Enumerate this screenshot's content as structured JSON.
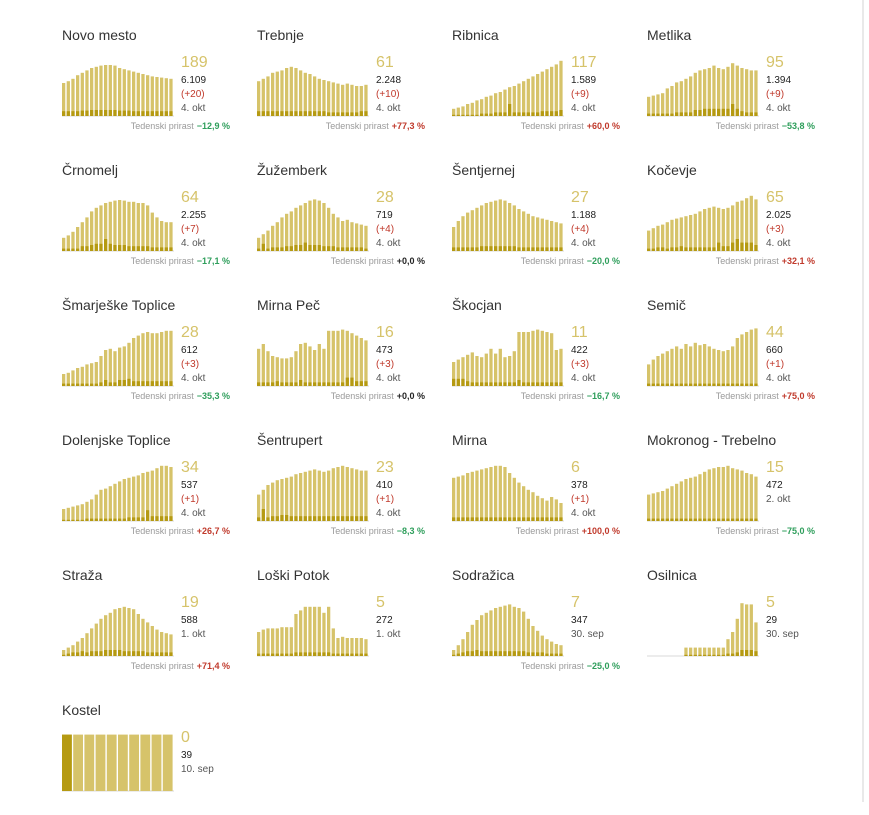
{
  "growth_label": "Tedenski prirast",
  "colors": {
    "area": "#d6c36a",
    "new": "#b59a12",
    "base": "#d8d8d8",
    "up": "#c0392b",
    "down": "#2e9e5b"
  },
  "chart_data": [
    {
      "type": "bar",
      "title": "Novo mesto",
      "active": "189",
      "total": "6.109",
      "delta": "(+20)",
      "date": "4. okt",
      "growth": "−12,9 %",
      "trend": "down",
      "values": [
        55,
        58,
        62,
        68,
        72,
        76,
        80,
        82,
        84,
        85,
        85,
        84,
        80,
        78,
        76,
        74,
        72,
        70,
        68,
        66,
        65,
        64,
        63,
        62
      ],
      "new": [
        8,
        8,
        8,
        8,
        9,
        9,
        10,
        10,
        10,
        10,
        10,
        10,
        9,
        9,
        9,
        8,
        8,
        8,
        8,
        8,
        8,
        8,
        8,
        8
      ]
    },
    {
      "type": "bar",
      "title": "Trebnje",
      "active": "61",
      "total": "2.248",
      "delta": "(+10)",
      "date": "4. okt",
      "growth": "+77,3 %",
      "trend": "up",
      "values": [
        58,
        62,
        66,
        72,
        74,
        76,
        80,
        82,
        80,
        76,
        72,
        70,
        66,
        62,
        60,
        58,
        56,
        54,
        52,
        54,
        52,
        50,
        50,
        52
      ],
      "new": [
        8,
        8,
        8,
        8,
        8,
        8,
        8,
        8,
        8,
        8,
        8,
        8,
        8,
        8,
        8,
        6,
        6,
        6,
        6,
        6,
        6,
        6,
        8,
        8
      ]
    },
    {
      "type": "bar",
      "title": "Ribnica",
      "active": "117",
      "total": "1.589",
      "delta": "(+9)",
      "date": "4. okt",
      "growth": "+60,0 %",
      "trend": "up",
      "values": [
        12,
        14,
        16,
        20,
        22,
        26,
        28,
        32,
        34,
        38,
        40,
        44,
        48,
        50,
        54,
        58,
        62,
        66,
        70,
        74,
        78,
        82,
        86,
        92
      ],
      "new": [
        2,
        2,
        2,
        2,
        2,
        2,
        4,
        4,
        4,
        6,
        6,
        6,
        20,
        6,
        6,
        6,
        6,
        6,
        6,
        8,
        8,
        8,
        8,
        10
      ]
    },
    {
      "type": "bar",
      "title": "Metlika",
      "active": "95",
      "total": "1.394",
      "delta": "(+9)",
      "date": "4. okt",
      "growth": "−53,8 %",
      "trend": "down",
      "values": [
        32,
        34,
        36,
        38,
        46,
        50,
        56,
        58,
        62,
        66,
        72,
        76,
        78,
        80,
        84,
        80,
        78,
        82,
        88,
        84,
        80,
        78,
        76,
        76
      ],
      "new": [
        4,
        4,
        4,
        4,
        4,
        4,
        6,
        6,
        6,
        6,
        10,
        10,
        12,
        12,
        12,
        12,
        12,
        12,
        20,
        12,
        8,
        6,
        6,
        6
      ]
    },
    {
      "type": "bar",
      "title": "Črnomelj",
      "active": "64",
      "total": "2.255",
      "delta": "(+7)",
      "date": "4. okt",
      "growth": "−17,1 %",
      "trend": "down",
      "values": [
        22,
        26,
        32,
        40,
        48,
        56,
        66,
        72,
        76,
        80,
        82,
        84,
        85,
        84,
        82,
        82,
        80,
        80,
        76,
        64,
        56,
        50,
        48,
        48
      ],
      "new": [
        4,
        4,
        4,
        4,
        8,
        8,
        10,
        12,
        12,
        20,
        12,
        10,
        10,
        10,
        8,
        8,
        8,
        8,
        8,
        6,
        6,
        6,
        6,
        6
      ]
    },
    {
      "type": "bar",
      "title": "Žužemberk",
      "active": "28",
      "total": "719",
      "delta": "(+4)",
      "date": "4. okt",
      "growth": "+0,0 %",
      "trend": "zero",
      "values": [
        22,
        28,
        34,
        42,
        48,
        56,
        62,
        66,
        72,
        76,
        80,
        84,
        86,
        84,
        80,
        72,
        62,
        56,
        50,
        52,
        48,
        46,
        44,
        42
      ],
      "new": [
        4,
        12,
        4,
        6,
        6,
        6,
        8,
        8,
        10,
        10,
        14,
        10,
        10,
        10,
        8,
        8,
        8,
        6,
        6,
        6,
        6,
        6,
        6,
        4
      ]
    },
    {
      "type": "bar",
      "title": "Šentjernej",
      "active": "27",
      "total": "1.188",
      "delta": "(+4)",
      "date": "4. okt",
      "growth": "−20,0 %",
      "trend": "down",
      "values": [
        40,
        50,
        58,
        64,
        68,
        72,
        76,
        80,
        82,
        84,
        86,
        84,
        80,
        76,
        70,
        66,
        62,
        58,
        56,
        54,
        52,
        50,
        48,
        46
      ],
      "new": [
        6,
        6,
        6,
        6,
        6,
        6,
        8,
        8,
        8,
        8,
        8,
        8,
        8,
        8,
        6,
        6,
        6,
        6,
        6,
        6,
        6,
        6,
        6,
        6
      ]
    },
    {
      "type": "bar",
      "title": "Kočevje",
      "active": "65",
      "total": "2.025",
      "delta": "(+3)",
      "date": "4. okt",
      "growth": "+32,1 %",
      "trend": "up",
      "values": [
        34,
        38,
        42,
        44,
        48,
        52,
        54,
        56,
        58,
        60,
        62,
        66,
        70,
        72,
        74,
        72,
        70,
        72,
        76,
        82,
        84,
        88,
        92,
        86
      ],
      "new": [
        4,
        4,
        6,
        6,
        4,
        6,
        6,
        8,
        6,
        6,
        6,
        6,
        6,
        6,
        6,
        14,
        8,
        8,
        14,
        20,
        14,
        14,
        14,
        10
      ]
    },
    {
      "type": "bar",
      "title": "Šmarješke Toplice",
      "active": "28",
      "total": "612",
      "delta": "(+3)",
      "date": "4. okt",
      "growth": "−35,3 %",
      "trend": "down",
      "values": [
        20,
        22,
        26,
        30,
        32,
        36,
        38,
        40,
        50,
        60,
        62,
        58,
        64,
        66,
        72,
        80,
        84,
        88,
        90,
        88,
        88,
        90,
        92,
        92
      ],
      "new": [
        4,
        4,
        4,
        4,
        4,
        4,
        4,
        4,
        6,
        10,
        6,
        6,
        10,
        10,
        12,
        8,
        8,
        8,
        8,
        8,
        8,
        8,
        8,
        8
      ]
    },
    {
      "type": "bar",
      "title": "Mirna Peč",
      "active": "16",
      "total": "473",
      "delta": "(+3)",
      "date": "4. okt",
      "growth": "+0,0 %",
      "trend": "zero",
      "values": [
        62,
        70,
        58,
        50,
        48,
        46,
        46,
        48,
        58,
        70,
        72,
        66,
        60,
        70,
        62,
        92,
        92,
        92,
        94,
        92,
        88,
        84,
        80,
        76
      ],
      "new": [
        6,
        6,
        6,
        6,
        8,
        6,
        6,
        6,
        6,
        10,
        6,
        6,
        6,
        6,
        6,
        6,
        6,
        6,
        6,
        14,
        14,
        8,
        8,
        8
      ]
    },
    {
      "type": "bar",
      "title": "Škocjan",
      "active": "11",
      "total": "422",
      "delta": "(+3)",
      "date": "4. okt",
      "growth": "−16,7 %",
      "trend": "down",
      "values": [
        40,
        44,
        48,
        52,
        56,
        50,
        48,
        54,
        62,
        54,
        62,
        48,
        50,
        58,
        90,
        90,
        90,
        92,
        94,
        92,
        90,
        88,
        60,
        62
      ],
      "new": [
        12,
        12,
        12,
        8,
        6,
        6,
        6,
        6,
        6,
        6,
        6,
        6,
        6,
        6,
        10,
        6,
        6,
        6,
        6,
        6,
        6,
        6,
        6,
        6
      ]
    },
    {
      "type": "bar",
      "title": "Semič",
      "active": "44",
      "total": "660",
      "delta": "(+1)",
      "date": "4. okt",
      "growth": "+75,0 %",
      "trend": "up",
      "values": [
        36,
        44,
        50,
        54,
        58,
        62,
        66,
        62,
        70,
        66,
        72,
        68,
        70,
        66,
        62,
        60,
        58,
        60,
        66,
        80,
        86,
        90,
        94,
        96
      ],
      "new": [
        4,
        4,
        4,
        4,
        4,
        4,
        4,
        4,
        4,
        4,
        4,
        4,
        4,
        4,
        4,
        4,
        4,
        4,
        4,
        4,
        4,
        4,
        4,
        4
      ]
    },
    {
      "type": "bar",
      "title": "Dolenjske Toplice",
      "active": "34",
      "total": "537",
      "delta": "(+1)",
      "date": "4. okt",
      "growth": "+26,7 %",
      "trend": "up",
      "values": [
        20,
        22,
        24,
        26,
        28,
        32,
        36,
        44,
        52,
        54,
        58,
        62,
        66,
        70,
        72,
        74,
        76,
        80,
        82,
        84,
        88,
        92,
        92,
        90
      ],
      "new": [
        2,
        2,
        2,
        2,
        2,
        4,
        4,
        4,
        4,
        4,
        4,
        4,
        4,
        4,
        6,
        6,
        6,
        6,
        18,
        8,
        8,
        8,
        8,
        8
      ]
    },
    {
      "type": "bar",
      "title": "Šentrupert",
      "active": "23",
      "total": "410",
      "delta": "(+1)",
      "date": "4. okt",
      "growth": "−8,3 %",
      "trend": "down",
      "values": [
        44,
        52,
        60,
        64,
        68,
        70,
        72,
        74,
        78,
        80,
        82,
        84,
        86,
        84,
        82,
        84,
        88,
        90,
        92,
        90,
        88,
        86,
        84,
        84
      ],
      "new": [
        6,
        20,
        6,
        8,
        8,
        10,
        10,
        8,
        8,
        8,
        8,
        8,
        8,
        8,
        8,
        8,
        8,
        8,
        8,
        8,
        8,
        8,
        8,
        8
      ]
    },
    {
      "type": "bar",
      "title": "Mirna",
      "active": "6",
      "total": "378",
      "delta": "(+1)",
      "date": "4. okt",
      "growth": "+100,0 %",
      "trend": "up",
      "values": [
        72,
        74,
        76,
        80,
        82,
        84,
        86,
        88,
        90,
        92,
        92,
        90,
        80,
        72,
        64,
        58,
        52,
        48,
        42,
        38,
        34,
        40,
        36,
        30
      ],
      "new": [
        6,
        6,
        6,
        6,
        6,
        6,
        6,
        6,
        6,
        6,
        6,
        6,
        6,
        6,
        6,
        6,
        6,
        6,
        6,
        6,
        6,
        6,
        6,
        6
      ]
    },
    {
      "type": "bar",
      "title": "Mokronog - Trebelno",
      "active": "15",
      "total": "472",
      "delta": "",
      "date": "2. okt",
      "growth": "−75,0 %",
      "trend": "down",
      "values": [
        44,
        46,
        48,
        50,
        54,
        58,
        62,
        66,
        70,
        72,
        74,
        78,
        82,
        86,
        88,
        90,
        90,
        92,
        88,
        86,
        84,
        80,
        78,
        74
      ],
      "new": [
        4,
        4,
        4,
        4,
        4,
        4,
        4,
        4,
        4,
        4,
        4,
        4,
        4,
        4,
        4,
        4,
        4,
        4,
        4,
        4,
        4,
        4,
        4,
        4
      ]
    },
    {
      "type": "bar",
      "title": "Straža",
      "active": "19",
      "total": "588",
      "delta": "",
      "date": "1. okt",
      "growth": "+71,4 %",
      "trend": "up",
      "values": [
        10,
        14,
        18,
        24,
        30,
        38,
        46,
        54,
        62,
        68,
        72,
        78,
        80,
        82,
        80,
        78,
        70,
        62,
        56,
        50,
        44,
        40,
        38,
        36
      ],
      "new": [
        2,
        4,
        6,
        6,
        8,
        6,
        8,
        8,
        8,
        10,
        10,
        10,
        10,
        8,
        8,
        8,
        8,
        8,
        6,
        6,
        6,
        6,
        6,
        6
      ]
    },
    {
      "type": "bar",
      "title": "Loški Potok",
      "active": "5",
      "total": "272",
      "delta": "",
      "date": "1. okt",
      "growth": "",
      "trend": "zero",
      "values": [
        40,
        44,
        46,
        46,
        46,
        48,
        48,
        48,
        70,
        76,
        82,
        82,
        82,
        82,
        72,
        82,
        46,
        30,
        32,
        30,
        30,
        30,
        30,
        28
      ],
      "new": [
        4,
        4,
        4,
        4,
        4,
        4,
        4,
        4,
        6,
        6,
        6,
        6,
        6,
        6,
        6,
        6,
        4,
        4,
        4,
        4,
        4,
        4,
        4,
        4
      ]
    },
    {
      "type": "bar",
      "title": "Sodražica",
      "active": "7",
      "total": "347",
      "delta": "",
      "date": "30. sep",
      "growth": "−25,0 %",
      "trend": "down",
      "values": [
        10,
        18,
        28,
        40,
        52,
        60,
        68,
        72,
        76,
        80,
        82,
        84,
        86,
        82,
        80,
        74,
        62,
        50,
        42,
        34,
        28,
        24,
        20,
        18
      ],
      "new": [
        2,
        4,
        6,
        8,
        8,
        10,
        8,
        8,
        8,
        8,
        8,
        8,
        8,
        8,
        8,
        8,
        6,
        6,
        6,
        6,
        4,
        4,
        4,
        4
      ]
    },
    {
      "type": "bar",
      "title": "Osilnica",
      "active": "5",
      "total": "29",
      "delta": "",
      "date": "30. sep",
      "growth": "",
      "trend": "zero",
      "values": [
        0,
        0,
        0,
        0,
        0,
        0,
        0,
        0,
        14,
        14,
        14,
        14,
        14,
        14,
        14,
        14,
        14,
        28,
        40,
        62,
        88,
        86,
        86,
        56
      ],
      "new": [
        0,
        0,
        0,
        0,
        0,
        0,
        0,
        0,
        2,
        2,
        2,
        2,
        2,
        2,
        2,
        2,
        2,
        4,
        4,
        6,
        10,
        10,
        10,
        8
      ]
    },
    {
      "type": "bar",
      "title": "Kostel",
      "active": "0",
      "total": "39",
      "delta": "",
      "date": "10. sep",
      "growth": "",
      "trend": "zero",
      "values": [
        94,
        94,
        94,
        94,
        94,
        94,
        94,
        94,
        94,
        94
      ],
      "new": [
        94,
        0,
        0,
        0,
        0,
        0,
        0,
        0,
        0,
        0
      ]
    }
  ]
}
